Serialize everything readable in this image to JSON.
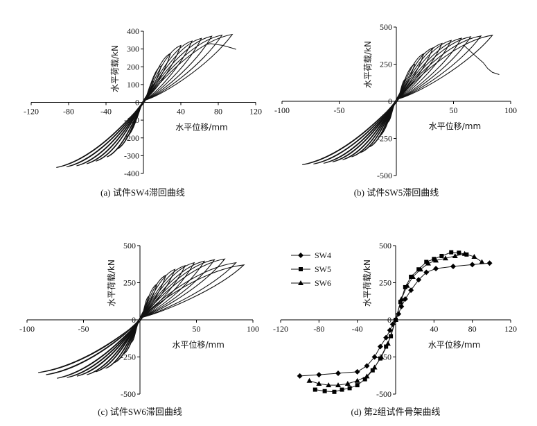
{
  "chart_data": [
    {
      "id": "a",
      "type": "line",
      "caption": "(a) 试件SW4滞回曲线",
      "xlabel": "水平位移/mm",
      "ylabel": "水平荷载/kN",
      "xlim": [
        -120,
        120
      ],
      "ylim": [
        -400,
        400
      ],
      "xticks": [
        -120,
        -80,
        -40,
        0,
        40,
        80,
        120
      ],
      "yticks": [
        -400,
        -300,
        -200,
        -100,
        0,
        100,
        200,
        300,
        400
      ],
      "hysteresis": {
        "x_peaks": [
          11,
          19,
          29,
          40,
          52,
          62,
          73,
          84,
          95
        ],
        "y_peaks": [
          120,
          205,
          275,
          320,
          345,
          360,
          372,
          378,
          382
        ],
        "final_path": [
          [
            72,
            330
          ],
          [
            85,
            320
          ],
          [
            95,
            305
          ],
          [
            99,
            298
          ]
        ]
      }
    },
    {
      "id": "b",
      "type": "line",
      "caption": "(b) 试件SW5滞回曲线",
      "xlabel": "水平位移/mm",
      "ylabel": "水平荷载/kN",
      "xlim": [
        -100,
        100
      ],
      "ylim": [
        -500,
        500
      ],
      "xticks": [
        -100,
        -50,
        0,
        50,
        100
      ],
      "yticks": [
        -500,
        -250,
        0,
        250,
        500
      ],
      "hysteresis": {
        "x_peaks": [
          8,
          16,
          24,
          32,
          40,
          48,
          57,
          65,
          74,
          84
        ],
        "y_peaks": [
          150,
          250,
          320,
          360,
          390,
          410,
          425,
          435,
          440,
          445
        ],
        "final_path": [
          [
            70,
            300
          ],
          [
            76,
            260
          ],
          [
            80,
            220
          ],
          [
            84,
            195
          ],
          [
            90,
            180
          ]
        ]
      }
    },
    {
      "id": "c",
      "type": "line",
      "caption": "(c) 试件SW6滞回曲线",
      "xlabel": "水平位移/mm",
      "ylabel": "水平荷载/kN",
      "xlim": [
        -100,
        100
      ],
      "ylim": [
        -500,
        500
      ],
      "xticks": [
        -100,
        -50,
        0,
        50,
        100
      ],
      "yticks": [
        -500,
        -250,
        0,
        250,
        500
      ],
      "hysteresis": {
        "x_peaks": [
          8,
          15,
          23,
          31,
          40,
          48,
          57,
          66,
          75,
          85,
          92
        ],
        "y_peaks": [
          160,
          240,
          300,
          340,
          365,
          385,
          395,
          405,
          410,
          385,
          370
        ],
        "final_path": []
      }
    },
    {
      "id": "d",
      "type": "line",
      "caption": "(d) 第2组试件骨架曲线",
      "xlabel": "水平位移/mm",
      "ylabel": "水平荷载/kN",
      "xlim": [
        -120,
        120
      ],
      "ylim": [
        -500,
        500
      ],
      "xticks": [
        -120,
        -80,
        -40,
        0,
        40,
        80,
        120
      ],
      "yticks": [
        -500,
        -250,
        0,
        250,
        500
      ],
      "legend_position": "top-left",
      "series": [
        {
          "name": "SW4",
          "marker": "diamond",
          "points": [
            [
              -100,
              -378
            ],
            [
              -80,
              -370
            ],
            [
              -60,
              -360
            ],
            [
              -40,
              -350
            ],
            [
              -30,
              -310
            ],
            [
              -22,
              -250
            ],
            [
              -16,
              -180
            ],
            [
              -10,
              -120
            ],
            [
              -6,
              -70
            ],
            [
              -3,
              -30
            ],
            [
              0,
              0
            ],
            [
              3,
              40
            ],
            [
              6,
              90
            ],
            [
              10,
              140
            ],
            [
              16,
              200
            ],
            [
              24,
              270
            ],
            [
              32,
              320
            ],
            [
              42,
              345
            ],
            [
              60,
              360
            ],
            [
              80,
              372
            ],
            [
              98,
              382
            ]
          ]
        },
        {
          "name": "SW5",
          "marker": "square",
          "points": [
            [
              -84,
              -470
            ],
            [
              -74,
              -480
            ],
            [
              -64,
              -485
            ],
            [
              -56,
              -470
            ],
            [
              -48,
              -460
            ],
            [
              -40,
              -440
            ],
            [
              -32,
              -400
            ],
            [
              -24,
              -340
            ],
            [
              -16,
              -260
            ],
            [
              -10,
              -180
            ],
            [
              -5,
              -110
            ],
            [
              0,
              0
            ],
            [
              5,
              120
            ],
            [
              10,
              220
            ],
            [
              16,
              290
            ],
            [
              24,
              340
            ],
            [
              32,
              390
            ],
            [
              40,
              410
            ],
            [
              48,
              430
            ],
            [
              58,
              455
            ],
            [
              66,
              452
            ],
            [
              74,
              440
            ]
          ]
        },
        {
          "name": "SW6",
          "marker": "triangle",
          "points": [
            [
              -90,
              -410
            ],
            [
              -80,
              -430
            ],
            [
              -70,
              -440
            ],
            [
              -60,
              -440
            ],
            [
              -50,
              -430
            ],
            [
              -40,
              -410
            ],
            [
              -30,
              -380
            ],
            [
              -22,
              -320
            ],
            [
              -15,
              -250
            ],
            [
              -8,
              -160
            ],
            [
              0,
              0
            ],
            [
              6,
              140
            ],
            [
              12,
              230
            ],
            [
              18,
              290
            ],
            [
              26,
              340
            ],
            [
              34,
              380
            ],
            [
              42,
              400
            ],
            [
              52,
              415
            ],
            [
              62,
              430
            ],
            [
              72,
              445
            ],
            [
              82,
              425
            ],
            [
              90,
              390
            ]
          ]
        }
      ]
    }
  ]
}
